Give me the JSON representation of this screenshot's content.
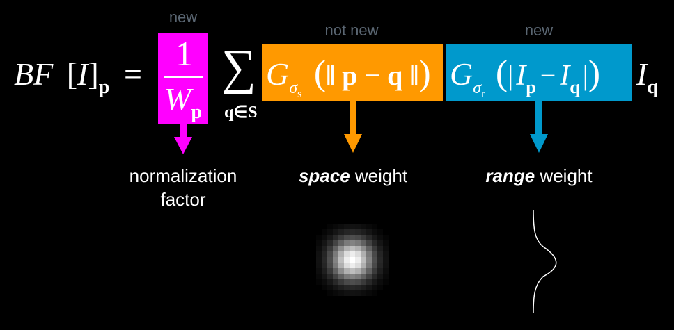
{
  "tags": {
    "new_left": "new",
    "not_new": "not new",
    "new_right": "new"
  },
  "formula": {
    "lhs_bf": "BF",
    "lhs_open": "[",
    "lhs_I": "I",
    "lhs_close": "]",
    "lhs_sub": "p",
    "equals": "=",
    "frac_num": "1",
    "frac_den_W": "W",
    "frac_den_sub": "p",
    "sum_symbol": "∑",
    "sum_sub": "q∈S",
    "space_G": "G",
    "space_sigma": "σ",
    "space_sigma_sub": "s",
    "space_arg_open": "(",
    "space_arg": "‖ p − q ‖",
    "space_arg_close": ")",
    "range_G": "G",
    "range_sigma": "σ",
    "range_sigma_sub": "r",
    "range_arg_open": "(",
    "range_arg_Ip": "I",
    "range_arg_Ip_sub": "p",
    "range_minus": "−",
    "range_arg_Iq": "I",
    "range_arg_Iq_sub": "q",
    "range_arg_close": ")",
    "tail_I": "I",
    "tail_sub": "q"
  },
  "labels": {
    "normalization_line1": "normalization",
    "normalization_line2": "factor",
    "space_bold": "space",
    "space_rest": " weight",
    "range_bold": "range",
    "range_rest": " weight"
  },
  "colors": {
    "normalization": "#ff00ff",
    "space": "#ff9900",
    "range": "#0099cc"
  }
}
